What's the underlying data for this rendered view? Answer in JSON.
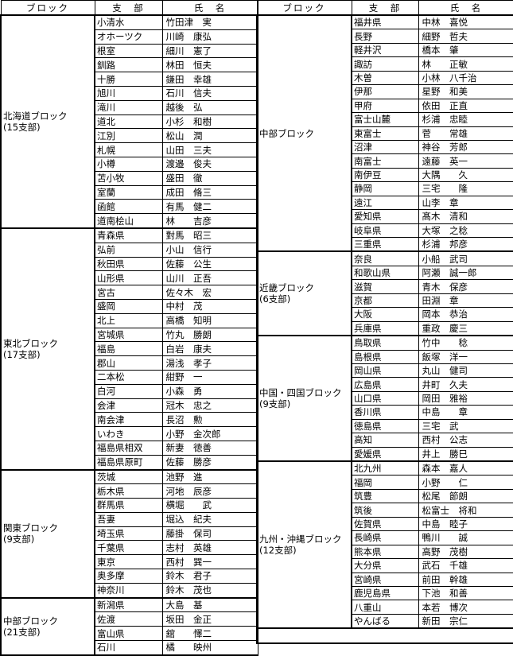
{
  "headers": {
    "block": "ブロック",
    "branch": "支　部",
    "name": "氏　名"
  },
  "left": [
    {
      "block": "北海道ブロック",
      "count": "(15支部)",
      "rows": [
        [
          "小清水",
          "竹田津　実"
        ],
        [
          "オホーツク",
          "川崎　康弘"
        ],
        [
          "根室",
          "細川　憲了"
        ],
        [
          "釧路",
          "林田　恒夫"
        ],
        [
          "十勝",
          "鎌田　幸雄"
        ],
        [
          "旭川",
          "石川　信夫"
        ],
        [
          "滝川",
          "越後　弘"
        ],
        [
          "道北",
          "小杉　和樹"
        ],
        [
          "江別",
          "松山　潤"
        ],
        [
          "札幌",
          "山田　三夫"
        ],
        [
          "小樽",
          "渡邉　俊夫"
        ],
        [
          "苫小牧",
          "盛田　徹"
        ],
        [
          "室蘭",
          "成田　脩三"
        ],
        [
          "函館",
          "有馬　健二"
        ],
        [
          "道南桧山",
          "林　　吉彦"
        ]
      ]
    },
    {
      "block": "東北ブロック",
      "count": "(17支部)",
      "rows": [
        [
          "青森県",
          "對馬　昭三"
        ],
        [
          "弘前",
          "小山　信行"
        ],
        [
          "秋田県",
          "佐藤　公生"
        ],
        [
          "山形県",
          "山川　正吾"
        ],
        [
          "宮古",
          "佐々木　宏"
        ],
        [
          "盛岡",
          "中村　茂"
        ],
        [
          "北上",
          "高橋　知明"
        ],
        [
          "宮城県",
          "竹丸　勝朗"
        ],
        [
          "福島",
          "白岩　康夫"
        ],
        [
          "郡山",
          "湯浅　孝子"
        ],
        [
          "二本松",
          "紺野　一"
        ],
        [
          "白河",
          "小森　勇"
        ],
        [
          "会津",
          "冠木　忠之"
        ],
        [
          "南会津",
          "長沼　勲"
        ],
        [
          "いわき",
          "小野　金次郎"
        ],
        [
          "福島県相双",
          "新妻　徳善"
        ],
        [
          "福島県原町",
          "佐藤　勝彦"
        ]
      ]
    },
    {
      "block": "関東ブロック",
      "count": "(9支部)",
      "rows": [
        [
          "茨城",
          "池野　進"
        ],
        [
          "栃木県",
          "河地　辰彦"
        ],
        [
          "群馬県",
          "横堀　　武"
        ],
        [
          "吾妻",
          "堀込　紀夫"
        ],
        [
          "埼玉県",
          "藤掛　保司"
        ],
        [
          "千葉県",
          "志村　英雄"
        ],
        [
          "東京",
          "西村　巽一"
        ],
        [
          "奥多摩",
          "鈴木　君子"
        ],
        [
          "神奈川",
          "鈴木　茂也"
        ]
      ]
    },
    {
      "block": "中部ブロック",
      "count": "(21支部)",
      "rows": [
        [
          "新潟県",
          "大島　基"
        ],
        [
          "佐渡",
          "坂田　金正"
        ],
        [
          "富山県",
          "舘　　懌二"
        ],
        [
          "石川",
          "橘　　映州"
        ]
      ]
    }
  ],
  "right": [
    {
      "block": "中部ブロック",
      "count": "",
      "rows": [
        [
          "福井県",
          "中林　喜悦"
        ],
        [
          "長野",
          "細野　哲夫"
        ],
        [
          "軽井沢",
          "橋本　肇"
        ],
        [
          "諏訪",
          "林　　正敏"
        ],
        [
          "木曽",
          "小林　八千治"
        ],
        [
          "伊那",
          "星野　和美"
        ],
        [
          "甲府",
          "依田　正直"
        ],
        [
          "富士山麓",
          "杉浦　忠睦"
        ],
        [
          "東富士",
          "菅　　常雄"
        ],
        [
          "沼津",
          "神谷　芳郎"
        ],
        [
          "南富士",
          "遠藤　英一"
        ],
        [
          "南伊豆",
          "大隅　　久"
        ],
        [
          "静岡",
          "三宅　　隆"
        ],
        [
          "遠江",
          "山李　章"
        ],
        [
          "愛知県",
          "髙木　清和"
        ],
        [
          "岐阜県",
          "大塚　之稔"
        ],
        [
          "三重県",
          "杉浦　邦彦"
        ]
      ]
    },
    {
      "block": "近畿ブロック",
      "count": "(6支部)",
      "rows": [
        [
          "奈良",
          "小船　武司"
        ],
        [
          "和歌山県",
          "阿瀬　誠一郎"
        ],
        [
          "滋賀",
          "青木　保彦"
        ],
        [
          "京都",
          "田淵　章"
        ],
        [
          "大阪",
          "岡本　恭治"
        ],
        [
          "兵庫県",
          "重政　慶三"
        ]
      ]
    },
    {
      "block": "中国・四国ブロック",
      "count": "(9支部)",
      "rows": [
        [
          "鳥取県",
          "竹中　　稔"
        ],
        [
          "島根県",
          "飯塚　洋一"
        ],
        [
          "岡山県",
          "丸山　健司"
        ],
        [
          "広島県",
          "井町　久夫"
        ],
        [
          "山口県",
          "岡田　雅裕"
        ],
        [
          "香川県",
          "中島　　章"
        ],
        [
          "徳島県",
          "三宅　武"
        ],
        [
          "高知",
          "西村　公志"
        ],
        [
          "愛媛県",
          "井上　勝巳"
        ]
      ]
    },
    {
      "block": "九州・沖縄ブロック",
      "count": "(12支部)",
      "rows": [
        [
          "北九州",
          "森本　嘉人"
        ],
        [
          "福岡",
          "小野　　仁"
        ],
        [
          "筑豊",
          "松尾　節朗"
        ],
        [
          "筑後",
          "松富士　将和"
        ],
        [
          "佐賀県",
          "中島　睦子"
        ],
        [
          "長崎県",
          "鴨川　　誠"
        ],
        [
          "熊本県",
          "高野　茂樹"
        ],
        [
          "大分県",
          "武石　千雄"
        ],
        [
          "宮崎県",
          "前田　幹雄"
        ],
        [
          "鹿児島県",
          "下池　和善"
        ],
        [
          "八重山",
          "本若　博次"
        ],
        [
          "やんばる",
          "新田　宗仁"
        ]
      ]
    }
  ]
}
